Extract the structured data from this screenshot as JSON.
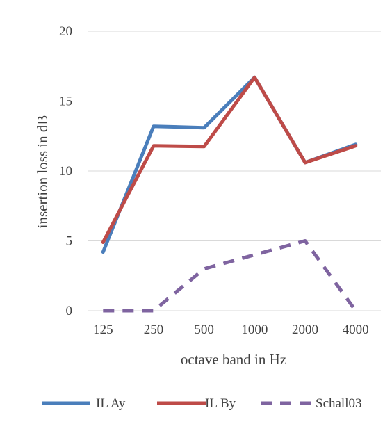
{
  "chart_data": {
    "type": "line",
    "categories": [
      "125",
      "250",
      "500",
      "1000",
      "2000",
      "4000"
    ],
    "xlabel": "octave band in Hz",
    "ylabel": "insertion loss in dB",
    "ylim": [
      0,
      20
    ],
    "yticks": [
      "0",
      "5",
      "10",
      "15",
      "20"
    ],
    "grid": "horizontal",
    "legend": "bottom",
    "series": [
      {
        "name": "IL Ay",
        "color": "#4a7ebb",
        "dash": "solid",
        "values": [
          4.2,
          13.2,
          13.1,
          16.7,
          10.6,
          11.9
        ]
      },
      {
        "name": "IL By",
        "color": "#be4b48",
        "dash": "solid",
        "values": [
          4.9,
          11.8,
          11.75,
          16.7,
          10.6,
          11.8
        ]
      },
      {
        "name": "Schall03",
        "color": "#7f64a0",
        "dash": "dashed",
        "values": [
          0,
          0,
          3,
          4,
          5,
          0
        ]
      }
    ]
  }
}
